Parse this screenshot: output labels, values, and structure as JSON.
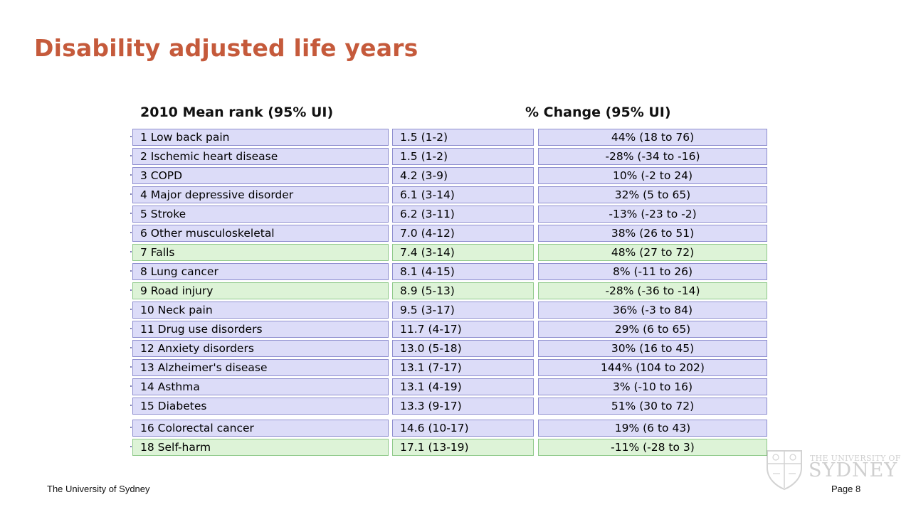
{
  "title": "Disability adjusted life years",
  "headers": {
    "rank": "2010 Mean rank (95% UI)",
    "change": "% Change (95% UI)"
  },
  "rows": [
    {
      "cause": "1 Low back pain",
      "rank": "1.5 (1-2)",
      "change": "44% (18 to 76)",
      "highlight": false
    },
    {
      "cause": "2 Ischemic heart disease",
      "rank": "1.5 (1-2)",
      "change": "-28% (-34 to -16)",
      "highlight": false
    },
    {
      "cause": "3 COPD",
      "rank": "4.2 (3-9)",
      "change": "10% (-2 to 24)",
      "highlight": false
    },
    {
      "cause": "4 Major depressive disorder",
      "rank": "6.1 (3-14)",
      "change": "32% (5 to 65)",
      "highlight": false
    },
    {
      "cause": "5 Stroke",
      "rank": "6.2 (3-11)",
      "change": "-13% (-23 to -2)",
      "highlight": false
    },
    {
      "cause": "6 Other musculoskeletal",
      "rank": "7.0 (4-12)",
      "change": "38% (26 to 51)",
      "highlight": false
    },
    {
      "cause": "7 Falls",
      "rank": "7.4 (3-14)",
      "change": "48% (27 to 72)",
      "highlight": true
    },
    {
      "cause": "8 Lung cancer",
      "rank": "8.1 (4-15)",
      "change": "8% (-11 to 26)",
      "highlight": false
    },
    {
      "cause": "9 Road injury",
      "rank": "8.9 (5-13)",
      "change": "-28% (-36 to -14)",
      "highlight": true
    },
    {
      "cause": "10 Neck pain",
      "rank": "9.5 (3-17)",
      "change": "36% (-3 to 84)",
      "highlight": false
    },
    {
      "cause": "11 Drug use disorders",
      "rank": "11.7 (4-17)",
      "change": "29% (6 to 65)",
      "highlight": false
    },
    {
      "cause": "12 Anxiety disorders",
      "rank": "13.0 (5-18)",
      "change": "30% (16 to 45)",
      "highlight": false
    },
    {
      "cause": "13 Alzheimer's disease",
      "rank": "13.1 (7-17)",
      "change": "144% (104 to 202)",
      "highlight": false
    },
    {
      "cause": "14 Asthma",
      "rank": "13.1 (4-19)",
      "change": "3% (-10 to 16)",
      "highlight": false
    },
    {
      "cause": "15 Diabetes",
      "rank": "13.3 (9-17)",
      "change": "51% (30 to 72)",
      "highlight": false
    },
    {
      "cause": "16 Colorectal cancer",
      "rank": "14.6 (10-17)",
      "change": "19% (6 to 43)",
      "highlight": false,
      "gap_before": true
    },
    {
      "cause": "18 Self-harm",
      "rank": "17.1 (13-19)",
      "change": "-11% (-28 to 3)",
      "highlight": true
    }
  ],
  "footer": {
    "left": "The University of Sydney",
    "right": "Page 8"
  },
  "logo": {
    "line1": "THE UNIVERSITY OF",
    "line2": "SYDNEY"
  },
  "colors": {
    "title": "#c55a3b",
    "row_default": "#dcdcf8",
    "row_highlight": "#ddf3d7"
  }
}
